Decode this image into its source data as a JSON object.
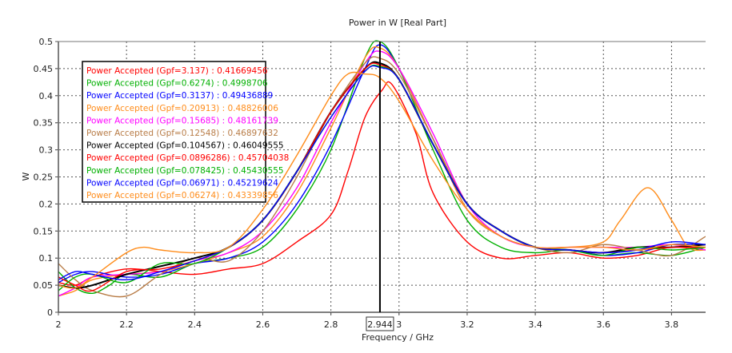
{
  "chart_data": {
    "type": "line",
    "title": "Power in W [Real Part]",
    "xlabel": "Frequency / GHz",
    "ylabel": "W",
    "xlim": [
      2,
      3.9
    ],
    "ylim": [
      0,
      0.5
    ],
    "xticks": [
      2,
      2.2,
      2.4,
      2.6,
      2.8,
      3,
      3.2,
      3.4,
      3.6,
      3.8
    ],
    "xtick_labels": [
      "2",
      "2.2",
      "2.4",
      "2.6",
      "2.8",
      "3",
      "3.2",
      "3.4",
      "3.6",
      "3.8"
    ],
    "yticks": [
      0,
      0.05,
      0.1,
      0.15,
      0.2,
      0.25,
      0.3,
      0.35,
      0.4,
      0.45,
      0.5
    ],
    "ytick_labels": [
      "0",
      "0.05",
      "0.1",
      "0.15",
      "0.2",
      "0.25",
      "0.3",
      "0.35",
      "0.4",
      "0.45",
      "0.5"
    ],
    "grid": true,
    "legend_position": "top-left",
    "marker": {
      "x": 2.944,
      "label": "2.944"
    },
    "series": [
      {
        "name": "Power Accepted (Gpf=3.137)",
        "value_label": "0.41669456",
        "color": "#ff0000",
        "x": [
          2.0,
          2.05,
          2.1,
          2.2,
          2.3,
          2.4,
          2.5,
          2.6,
          2.7,
          2.8,
          2.85,
          2.9,
          2.95,
          2.98,
          3.05,
          3.1,
          3.2,
          3.3,
          3.4,
          3.5,
          3.6,
          3.7,
          3.8,
          3.9
        ],
        "y": [
          0.055,
          0.05,
          0.065,
          0.08,
          0.075,
          0.07,
          0.08,
          0.09,
          0.13,
          0.18,
          0.26,
          0.36,
          0.41,
          0.42,
          0.33,
          0.22,
          0.13,
          0.1,
          0.105,
          0.11,
          0.1,
          0.105,
          0.12,
          0.115
        ]
      },
      {
        "name": "Power Accepted (Gpf=0.6274)",
        "value_label": "0.4998706",
        "color": "#00b000",
        "x": [
          2.0,
          2.05,
          2.1,
          2.15,
          2.2,
          2.3,
          2.4,
          2.5,
          2.6,
          2.7,
          2.8,
          2.9,
          2.944,
          3.0,
          3.1,
          3.2,
          3.3,
          3.4,
          3.5,
          3.6,
          3.7,
          3.8,
          3.9
        ],
        "y": [
          0.075,
          0.045,
          0.035,
          0.05,
          0.07,
          0.065,
          0.09,
          0.1,
          0.12,
          0.19,
          0.3,
          0.47,
          0.5,
          0.45,
          0.3,
          0.17,
          0.12,
          0.11,
          0.115,
          0.105,
          0.11,
          0.105,
          0.12
        ]
      },
      {
        "name": "Power Accepted (Gpf=0.3137)",
        "value_label": "0.49436889",
        "color": "#0000ff",
        "x": [
          2.0,
          2.05,
          2.1,
          2.2,
          2.3,
          2.4,
          2.5,
          2.6,
          2.7,
          2.8,
          2.9,
          2.944,
          3.0,
          3.1,
          3.2,
          3.3,
          3.4,
          3.5,
          3.6,
          3.7,
          3.8,
          3.9
        ],
        "y": [
          0.055,
          0.07,
          0.075,
          0.065,
          0.07,
          0.09,
          0.1,
          0.13,
          0.2,
          0.31,
          0.45,
          0.494,
          0.45,
          0.32,
          0.19,
          0.14,
          0.12,
          0.115,
          0.105,
          0.11,
          0.125,
          0.125
        ]
      },
      {
        "name": "Power Accepted (Gpf=0.20913)",
        "value_label": "0.48826006",
        "color": "#ff8c1a",
        "x": [
          2.0,
          2.05,
          2.1,
          2.2,
          2.3,
          2.4,
          2.5,
          2.6,
          2.7,
          2.8,
          2.9,
          2.944,
          3.0,
          3.1,
          3.2,
          3.3,
          3.4,
          3.5,
          3.6,
          3.65,
          3.73,
          3.8,
          3.85,
          3.9
        ],
        "y": [
          0.03,
          0.04,
          0.06,
          0.07,
          0.075,
          0.09,
          0.11,
          0.14,
          0.22,
          0.34,
          0.47,
          0.488,
          0.45,
          0.32,
          0.19,
          0.14,
          0.12,
          0.12,
          0.13,
          0.17,
          0.23,
          0.17,
          0.12,
          0.115
        ]
      },
      {
        "name": "Power Accepted (Gpf=0.15685)",
        "value_label": "0.48161739",
        "color": "#ff00ff",
        "x": [
          2.0,
          2.05,
          2.1,
          2.2,
          2.3,
          2.4,
          2.5,
          2.6,
          2.7,
          2.8,
          2.9,
          2.944,
          3.0,
          3.1,
          3.2,
          3.3,
          3.4,
          3.5,
          3.6,
          3.7,
          3.8,
          3.9
        ],
        "y": [
          0.03,
          0.045,
          0.065,
          0.07,
          0.075,
          0.095,
          0.11,
          0.15,
          0.23,
          0.35,
          0.46,
          0.482,
          0.45,
          0.33,
          0.2,
          0.14,
          0.12,
          0.12,
          0.12,
          0.12,
          0.125,
          0.115
        ]
      },
      {
        "name": "Power Accepted (Gpf=0.12548)",
        "value_label": "0.46897632",
        "color": "#b87c47",
        "x": [
          2.0,
          2.05,
          2.1,
          2.2,
          2.3,
          2.4,
          2.5,
          2.6,
          2.7,
          2.8,
          2.9,
          2.944,
          3.0,
          3.1,
          3.2,
          3.3,
          3.4,
          3.5,
          3.6,
          3.7,
          3.8,
          3.9
        ],
        "y": [
          0.09,
          0.06,
          0.04,
          0.03,
          0.07,
          0.1,
          0.095,
          0.15,
          0.25,
          0.37,
          0.46,
          0.469,
          0.44,
          0.32,
          0.2,
          0.15,
          0.12,
          0.11,
          0.125,
          0.115,
          0.105,
          0.14
        ]
      },
      {
        "name": "Power Accepted (Gpf=0.104567)",
        "value_label": "0.46049555",
        "color": "#000000",
        "x": [
          2.0,
          2.05,
          2.1,
          2.2,
          2.3,
          2.4,
          2.5,
          2.6,
          2.7,
          2.8,
          2.9,
          2.944,
          3.0,
          3.1,
          3.2,
          3.3,
          3.4,
          3.5,
          3.6,
          3.7,
          3.8,
          3.9
        ],
        "y": [
          0.05,
          0.045,
          0.05,
          0.07,
          0.085,
          0.1,
          0.12,
          0.17,
          0.26,
          0.37,
          0.45,
          0.46,
          0.43,
          0.31,
          0.2,
          0.15,
          0.12,
          0.115,
          0.11,
          0.12,
          0.12,
          0.125
        ]
      },
      {
        "name": "Power Accepted (Gpf=0.0896286)",
        "value_label": "0.45704038",
        "color": "#ff0000",
        "x": [
          2.0,
          2.05,
          2.1,
          2.2,
          2.3,
          2.4,
          2.5,
          2.6,
          2.7,
          2.8,
          2.9,
          2.944,
          3.0,
          3.1,
          3.2,
          3.3,
          3.4,
          3.5,
          3.6,
          3.7,
          3.8,
          3.9
        ],
        "y": [
          0.065,
          0.05,
          0.04,
          0.075,
          0.08,
          0.095,
          0.12,
          0.17,
          0.26,
          0.37,
          0.45,
          0.457,
          0.43,
          0.31,
          0.2,
          0.15,
          0.12,
          0.115,
          0.11,
          0.115,
          0.12,
          0.12
        ]
      },
      {
        "name": "Power Accepted (Gpf=0.078425)",
        "value_label": "0.45430555",
        "color": "#00b000",
        "x": [
          2.0,
          2.05,
          2.1,
          2.2,
          2.3,
          2.4,
          2.5,
          2.6,
          2.7,
          2.8,
          2.9,
          2.944,
          3.0,
          3.1,
          3.2,
          3.3,
          3.4,
          3.5,
          3.6,
          3.7,
          3.8,
          3.9
        ],
        "y": [
          0.04,
          0.065,
          0.07,
          0.055,
          0.09,
          0.09,
          0.12,
          0.17,
          0.26,
          0.36,
          0.445,
          0.454,
          0.43,
          0.31,
          0.2,
          0.15,
          0.12,
          0.115,
          0.105,
          0.12,
          0.115,
          0.12
        ]
      },
      {
        "name": "Power Accepted (Gpf=0.06971)",
        "value_label": "0.45219624",
        "color": "#0000ff",
        "x": [
          2.0,
          2.05,
          2.1,
          2.2,
          2.3,
          2.4,
          2.5,
          2.6,
          2.7,
          2.8,
          2.9,
          2.944,
          3.0,
          3.1,
          3.2,
          3.3,
          3.4,
          3.5,
          3.6,
          3.7,
          3.8,
          3.9
        ],
        "y": [
          0.06,
          0.075,
          0.07,
          0.06,
          0.075,
          0.095,
          0.12,
          0.17,
          0.26,
          0.36,
          0.445,
          0.452,
          0.43,
          0.31,
          0.2,
          0.15,
          0.12,
          0.115,
          0.11,
          0.115,
          0.13,
          0.125
        ]
      },
      {
        "name": "Power Accepted (Gpf=0.06274)",
        "value_label": "0.43339856",
        "color": "#ff8c1a",
        "x": [
          2.0,
          2.05,
          2.1,
          2.2,
          2.25,
          2.3,
          2.4,
          2.5,
          2.6,
          2.7,
          2.8,
          2.85,
          2.9,
          2.944,
          3.0,
          3.1,
          3.2,
          3.3,
          3.4,
          3.5,
          3.6,
          3.7,
          3.8,
          3.9
        ],
        "y": [
          0.05,
          0.045,
          0.065,
          0.11,
          0.12,
          0.115,
          0.11,
          0.12,
          0.19,
          0.29,
          0.4,
          0.44,
          0.44,
          0.433,
          0.39,
          0.28,
          0.19,
          0.14,
          0.12,
          0.12,
          0.12,
          0.115,
          0.125,
          0.12
        ]
      }
    ]
  }
}
